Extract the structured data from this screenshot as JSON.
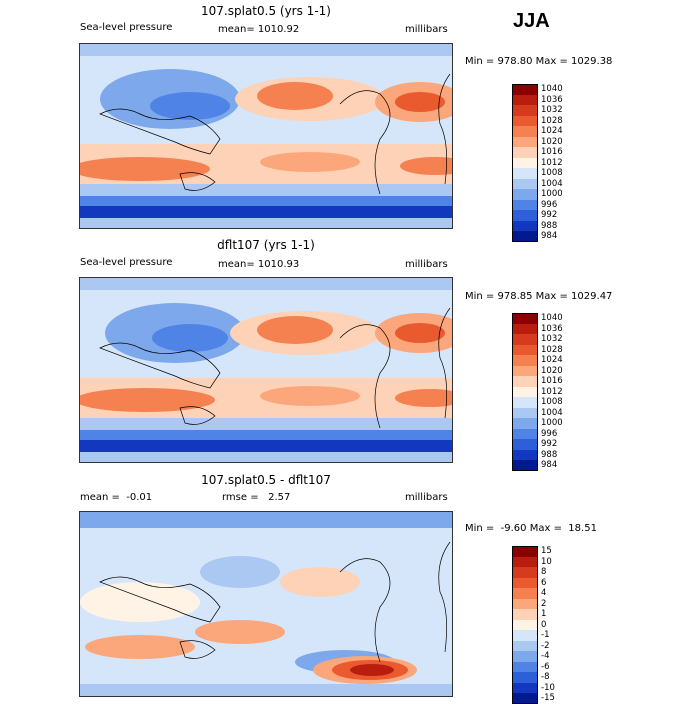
{
  "season": "JJA",
  "panels": [
    {
      "title": "107.splat0.5 (yrs 1-1)",
      "left_label": "Sea-level pressure",
      "center_label": "mean= 1010.92",
      "right_label": "millibars",
      "minmax": "Min = 978.80 Max = 1029.38"
    },
    {
      "title": "dflt107 (yrs 1-1)",
      "left_label": "Sea-level pressure",
      "center_label": "mean= 1010.93",
      "right_label": "millibars",
      "minmax": "Min = 978.85 Max = 1029.47"
    },
    {
      "title": "107.splat0.5 - dflt107",
      "left_label": "mean =  -0.01",
      "center_label": "rmse =   2.57",
      "right_label": "millibars",
      "minmax": "Min =  -9.60 Max =  18.51"
    }
  ],
  "colorbar_abs": {
    "levels": [
      "1040",
      "1036",
      "1032",
      "1028",
      "1024",
      "1020",
      "1016",
      "1012",
      "1008",
      "1004",
      "1000",
      "996",
      "992",
      "988",
      "984"
    ],
    "colors": [
      "#8b0000",
      "#b81d0e",
      "#d73b1f",
      "#ea5a2f",
      "#f58050",
      "#fba77b",
      "#fdd2b6",
      "#fff3e6",
      "#d6e6fa",
      "#aac8f2",
      "#7ea8ec",
      "#4f84e6",
      "#2c5fd8",
      "#1238c0",
      "#021a8f"
    ]
  },
  "colorbar_diff": {
    "levels": [
      "15",
      "10",
      "8",
      "6",
      "4",
      "2",
      "1",
      "0",
      "-1",
      "-2",
      "-4",
      "-6",
      "-8",
      "-10",
      "-15"
    ],
    "colors": [
      "#8b0000",
      "#b81d0e",
      "#d73b1f",
      "#ea5a2f",
      "#f58050",
      "#fba77b",
      "#fdd2b6",
      "#fff3e6",
      "#d6e6fa",
      "#aac8f2",
      "#7ea8ec",
      "#4f84e6",
      "#2c5fd8",
      "#1238c0",
      "#021a8f"
    ]
  }
}
